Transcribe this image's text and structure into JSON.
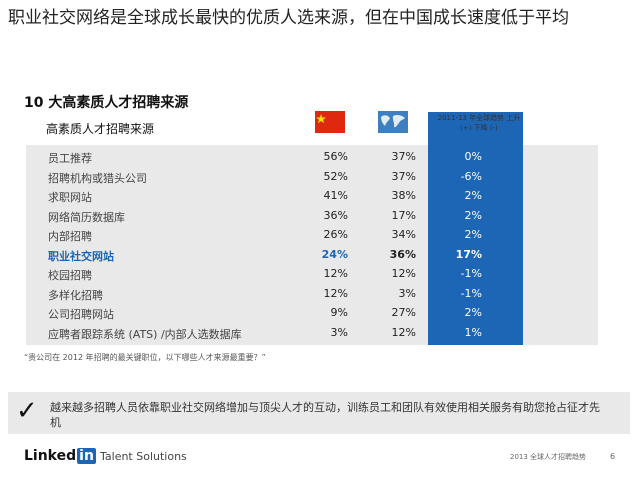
{
  "title": "职业社交网络是全球成长最快的优质人选来源，但在中国成长速度低于平均",
  "subtitle": "10 大高素质人才招聘来源",
  "table": {
    "header_label": "高素质人才招聘来源",
    "trend_label": "2011-13 年全球趋势 上升 (+) 下降 (-)",
    "rows": [
      {
        "label": "员工推荐",
        "cn": "56%",
        "world": "37%",
        "trend": "0%"
      },
      {
        "label": "招聘机构或猎头公司",
        "cn": "52%",
        "world": "37%",
        "trend": "-6%"
      },
      {
        "label": "求职网站",
        "cn": "41%",
        "world": "38%",
        "trend": "2%"
      },
      {
        "label": "网络简历数据库",
        "cn": "36%",
        "world": "17%",
        "trend": "2%"
      },
      {
        "label": "内部招聘",
        "cn": "26%",
        "world": "34%",
        "trend": "2%"
      },
      {
        "label": "职业社交网站",
        "cn": "24%",
        "world": "36%",
        "trend": "17%",
        "highlight": true
      },
      {
        "label": "校园招聘",
        "cn": "12%",
        "world": "12%",
        "trend": "-1%"
      },
      {
        "label": "多样化招聘",
        "cn": "12%",
        "world": "3%",
        "trend": "-1%"
      },
      {
        "label": "公司招聘网站",
        "cn": "9%",
        "world": "27%",
        "trend": "2%"
      },
      {
        "label": "应聘者跟踪系统 (ATS) /内部人选数据库",
        "cn": "3%",
        "world": "12%",
        "trend": "1%"
      }
    ]
  },
  "footnote": "“贵公司在 2012 年招聘的最关键职位，以下哪些人才来源最重要？”",
  "banner": "越来越多招聘人员依靠职业社交网络增加与顶尖人才的互动，训练员工和团队有效使用相关服务有助您抢占征才先机",
  "footer": {
    "logo_text": "Linked",
    "logo_in": "in",
    "brand": "Talent Solutions",
    "page_label": "2013 全球人才招聘趋势",
    "page_number": "6"
  },
  "colors": {
    "accent": "#1d66b5",
    "china_red": "#de2910"
  },
  "icons": {
    "china_flag": "china-flag-icon",
    "world_map": "world-map-icon",
    "check": "check-icon"
  }
}
